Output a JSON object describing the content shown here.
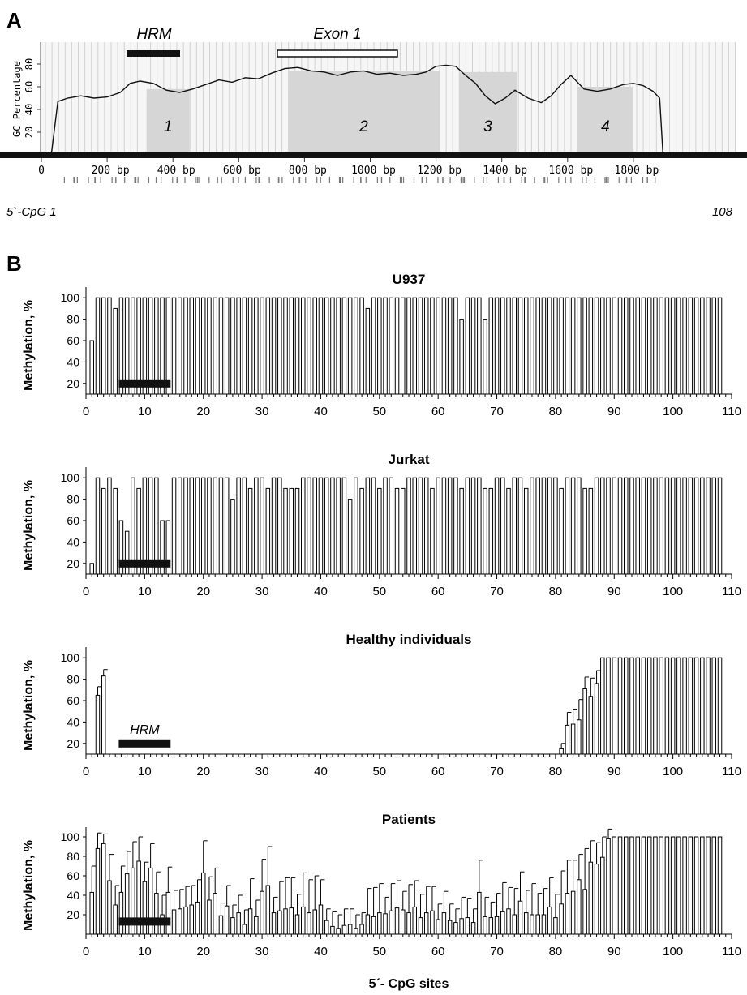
{
  "panel_a": {
    "letter": "A",
    "hrm_label": "HRM",
    "exon_label": "Exon 1",
    "ylabel": "GC Percentage",
    "y_ticks": [
      "0",
      "20",
      "40",
      "60",
      "80"
    ],
    "x_ticks": [
      "0",
      "200 bp",
      "400 bp",
      "600 bp",
      "800 bp",
      "1000 bp",
      "1200 bp",
      "1400 bp",
      "1600 bp",
      "1800 bp"
    ],
    "islands": [
      "1",
      "2",
      "3",
      "4"
    ],
    "cpg_start_label": "5`-CpG 1",
    "cpg_end_label": "108"
  },
  "panel_b": {
    "letter": "B",
    "xlabel": "5´- CpG sites",
    "ylabel": "Methylation, %",
    "hrm_label": "HRM"
  },
  "chart_data": [
    {
      "type": "line",
      "name": "Panel A GC content",
      "ylabel": "GC Percentage",
      "xlim": [
        0,
        1900
      ],
      "ylim": [
        0,
        100
      ],
      "x": [
        30,
        50,
        80,
        120,
        160,
        200,
        240,
        270,
        300,
        340,
        380,
        420,
        460,
        500,
        540,
        580,
        620,
        660,
        700,
        740,
        780,
        820,
        860,
        900,
        940,
        980,
        1020,
        1060,
        1100,
        1140,
        1170,
        1200,
        1230,
        1260,
        1290,
        1320,
        1350,
        1380,
        1410,
        1440,
        1480,
        1520,
        1550,
        1580,
        1610,
        1650,
        1690,
        1730,
        1770,
        1800,
        1830,
        1860,
        1880,
        1890
      ],
      "y": [
        0,
        47,
        50,
        52,
        50,
        51,
        55,
        63,
        65,
        63,
        57,
        55,
        58,
        62,
        66,
        64,
        68,
        67,
        72,
        76,
        77,
        74,
        73,
        70,
        73,
        74,
        71,
        72,
        70,
        71,
        73,
        78,
        79,
        78,
        70,
        63,
        52,
        45,
        50,
        57,
        50,
        46,
        52,
        62,
        70,
        58,
        56,
        58,
        62,
        63,
        61,
        56,
        50,
        0
      ]
    },
    {
      "type": "bar",
      "title": "U937",
      "xlabel": "",
      "ylabel": "Methylation, %",
      "xlim": [
        0,
        110
      ],
      "ylim": [
        10,
        110
      ],
      "x_ticks": [
        0,
        10,
        20,
        30,
        40,
        50,
        60,
        70,
        80,
        90,
        100,
        110
      ],
      "y_ticks": [
        20,
        40,
        60,
        80,
        100
      ],
      "values": [
        60,
        100,
        100,
        100,
        90,
        100,
        100,
        100,
        100,
        100,
        100,
        100,
        100,
        100,
        100,
        100,
        100,
        100,
        100,
        100,
        100,
        100,
        100,
        100,
        100,
        100,
        100,
        100,
        100,
        100,
        100,
        100,
        100,
        100,
        100,
        100,
        100,
        100,
        100,
        100,
        100,
        100,
        100,
        100,
        100,
        100,
        100,
        90,
        100,
        100,
        100,
        100,
        100,
        100,
        100,
        100,
        100,
        100,
        100,
        100,
        100,
        100,
        100,
        80,
        100,
        100,
        100,
        80,
        100,
        100,
        100,
        100,
        100,
        100,
        100,
        100,
        100,
        100,
        100,
        100,
        100,
        100,
        100,
        100,
        100,
        100,
        100,
        100,
        100,
        100,
        100,
        100,
        100,
        100,
        100,
        100,
        100,
        100,
        100,
        100,
        100,
        100,
        100,
        100,
        100,
        100,
        100,
        100
      ],
      "hrm_range": [
        6,
        14
      ]
    },
    {
      "type": "bar",
      "title": "Jurkat",
      "xlabel": "",
      "ylabel": "Methylation, %",
      "xlim": [
        0,
        110
      ],
      "ylim": [
        10,
        110
      ],
      "x_ticks": [
        0,
        10,
        20,
        30,
        40,
        50,
        60,
        70,
        80,
        90,
        100,
        110
      ],
      "y_ticks": [
        20,
        40,
        60,
        80,
        100
      ],
      "values": [
        20,
        100,
        90,
        100,
        90,
        60,
        50,
        100,
        90,
        100,
        100,
        100,
        60,
        60,
        100,
        100,
        100,
        100,
        100,
        100,
        100,
        100,
        100,
        100,
        80,
        100,
        100,
        90,
        100,
        100,
        90,
        100,
        100,
        90,
        90,
        90,
        100,
        100,
        100,
        100,
        100,
        100,
        100,
        100,
        80,
        100,
        90,
        100,
        100,
        90,
        100,
        100,
        90,
        90,
        100,
        100,
        100,
        100,
        90,
        100,
        100,
        100,
        100,
        90,
        100,
        100,
        100,
        90,
        90,
        100,
        100,
        90,
        100,
        100,
        90,
        100,
        100,
        100,
        100,
        100,
        90,
        100,
        100,
        100,
        90,
        90,
        100,
        100,
        100,
        100,
        100,
        100,
        100,
        100,
        100,
        100,
        100,
        100,
        100,
        100,
        100,
        100,
        100,
        100,
        100,
        100,
        100,
        100
      ],
      "errors": [
        0,
        0,
        0,
        0,
        0,
        0,
        0,
        0,
        0,
        0,
        0,
        0,
        0,
        0,
        0,
        0,
        0,
        0,
        0,
        0,
        0,
        0,
        0,
        0,
        0,
        0,
        0,
        0,
        0,
        0,
        0,
        0,
        0,
        0,
        0,
        0,
        0,
        0,
        0,
        0,
        0,
        0,
        0,
        0,
        0,
        0,
        0,
        0,
        0,
        0,
        0,
        0,
        0,
        0,
        0,
        0,
        0,
        0,
        0,
        0,
        0,
        0,
        0,
        0,
        0,
        0,
        0,
        0,
        0,
        0,
        0,
        0,
        0,
        0,
        0,
        0,
        0,
        0,
        0,
        0,
        0,
        0,
        0,
        0,
        0,
        0,
        0,
        0,
        0,
        0,
        0,
        0,
        0,
        0,
        0,
        0,
        0,
        0,
        0,
        0,
        0,
        0,
        0,
        0,
        0,
        0,
        0,
        0
      ],
      "hrm_range": [
        6,
        14
      ]
    },
    {
      "type": "bar",
      "title": "Healthy individuals",
      "xlabel": "",
      "ylabel": "Methylation, %",
      "xlim": [
        0,
        110
      ],
      "ylim": [
        10,
        110
      ],
      "x_ticks": [
        0,
        10,
        20,
        30,
        40,
        50,
        60,
        70,
        80,
        90,
        100,
        110
      ],
      "y_ticks": [
        20,
        40,
        60,
        80,
        100
      ],
      "values": [
        0,
        65,
        83,
        0,
        0,
        0,
        0,
        0,
        0,
        0,
        0,
        0,
        0,
        0,
        0,
        0,
        0,
        0,
        0,
        0,
        0,
        0,
        0,
        0,
        0,
        0,
        0,
        0,
        0,
        0,
        0,
        0,
        0,
        0,
        0,
        0,
        0,
        0,
        0,
        0,
        0,
        0,
        0,
        0,
        0,
        0,
        0,
        0,
        0,
        0,
        0,
        0,
        0,
        0,
        0,
        0,
        0,
        0,
        0,
        0,
        0,
        0,
        0,
        0,
        0,
        0,
        0,
        0,
        0,
        0,
        0,
        0,
        0,
        0,
        0,
        0,
        0,
        0,
        0,
        0,
        15,
        37,
        38,
        42,
        71,
        64,
        76,
        100,
        100,
        100,
        100,
        100,
        100,
        100,
        100,
        100,
        100,
        100,
        100,
        100,
        100,
        100,
        100,
        100,
        100,
        100,
        100,
        100
      ],
      "errors": [
        0,
        8,
        6,
        0,
        0,
        0,
        0,
        0,
        0,
        0,
        0,
        0,
        0,
        0,
        0,
        0,
        0,
        0,
        0,
        0,
        0,
        0,
        0,
        0,
        0,
        0,
        0,
        0,
        0,
        0,
        0,
        0,
        0,
        0,
        0,
        0,
        0,
        0,
        0,
        0,
        0,
        0,
        0,
        0,
        0,
        0,
        0,
        0,
        0,
        0,
        0,
        0,
        0,
        0,
        0,
        0,
        0,
        0,
        0,
        0,
        0,
        0,
        0,
        0,
        0,
        0,
        0,
        0,
        0,
        0,
        0,
        0,
        0,
        0,
        0,
        0,
        0,
        0,
        0,
        0,
        5,
        12,
        14,
        19,
        11,
        17,
        12,
        0,
        0,
        0,
        0,
        0,
        0,
        0,
        0,
        0,
        0,
        0,
        0,
        0,
        0,
        0,
        0,
        0,
        0,
        0,
        0,
        0
      ],
      "hrm_range": [
        6,
        14
      ]
    },
    {
      "type": "bar",
      "title": "Patients",
      "xlabel": "5´- CpG sites",
      "ylabel": "Methylation, %",
      "xlim": [
        0,
        110
      ],
      "ylim": [
        0,
        110
      ],
      "x_ticks": [
        0,
        10,
        20,
        30,
        40,
        50,
        60,
        70,
        80,
        90,
        100,
        110
      ],
      "y_ticks": [
        20,
        40,
        60,
        80,
        100
      ],
      "values": [
        43,
        88,
        93,
        55,
        30,
        43,
        62,
        68,
        75,
        54,
        68,
        42,
        20,
        43,
        25,
        26,
        28,
        30,
        33,
        63,
        35,
        42,
        19,
        29,
        17,
        22,
        10,
        26,
        18,
        44,
        50,
        22,
        24,
        26,
        27,
        20,
        28,
        22,
        25,
        30,
        14,
        8,
        6,
        9,
        10,
        6,
        10,
        20,
        18,
        22,
        21,
        24,
        27,
        25,
        22,
        28,
        17,
        22,
        24,
        15,
        22,
        14,
        12,
        16,
        17,
        12,
        43,
        18,
        17,
        18,
        23,
        26,
        20,
        34,
        22,
        20,
        20,
        20,
        28,
        17,
        31,
        42,
        44,
        56,
        46,
        74,
        72,
        79,
        98,
        100,
        100,
        100,
        100,
        100,
        100,
        100,
        100,
        100,
        100,
        100,
        100,
        100,
        100,
        100,
        100,
        100,
        100,
        100
      ],
      "errors": [
        27,
        16,
        10,
        27,
        20,
        27,
        23,
        27,
        25,
        20,
        25,
        22,
        20,
        26,
        20,
        20,
        21,
        20,
        23,
        33,
        24,
        26,
        13,
        21,
        13,
        18,
        15,
        31,
        17,
        33,
        40,
        16,
        30,
        32,
        31,
        21,
        35,
        34,
        35,
        26,
        12,
        15,
        14,
        17,
        16,
        14,
        12,
        27,
        30,
        30,
        17,
        28,
        28,
        19,
        29,
        27,
        24,
        27,
        25,
        16,
        22,
        17,
        14,
        22,
        20,
        14,
        33,
        20,
        16,
        24,
        30,
        22,
        27,
        30,
        23,
        32,
        22,
        27,
        30,
        24,
        34,
        34,
        32,
        26,
        42,
        22,
        22,
        21,
        10,
        0,
        0,
        0,
        0,
        0,
        0,
        0,
        0,
        0,
        0,
        0,
        0,
        0,
        0,
        0,
        0,
        0,
        0,
        0
      ],
      "hrm_range": [
        6,
        14
      ]
    }
  ]
}
